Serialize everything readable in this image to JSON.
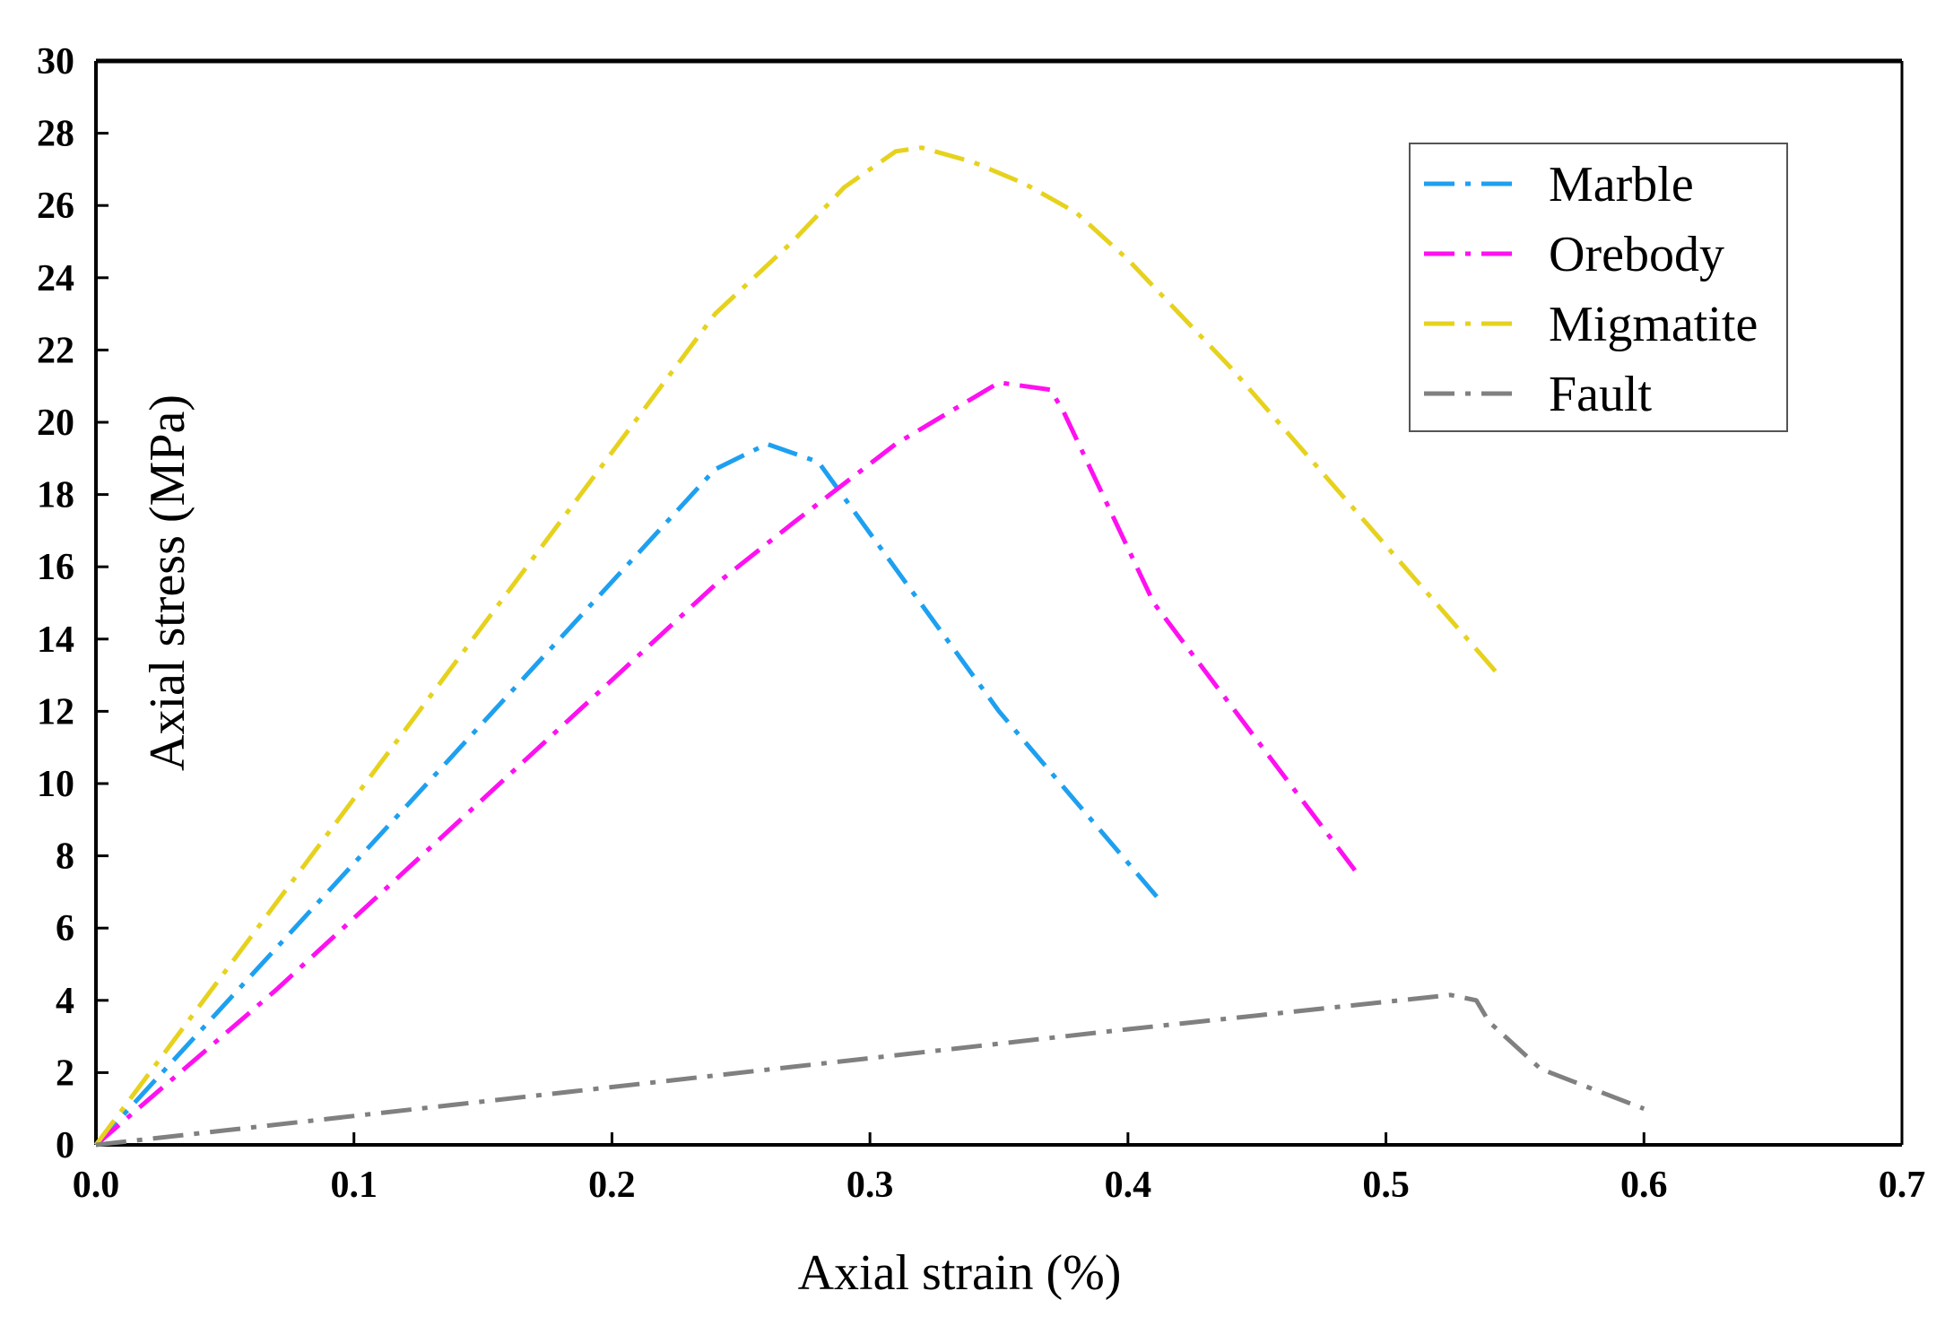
{
  "chart_data": {
    "type": "line",
    "title": "",
    "xlabel": "Axial strain (%)",
    "ylabel": "Axial stress (MPa)",
    "xlim": [
      0.0,
      0.7
    ],
    "ylim": [
      0,
      30
    ],
    "xticks": [
      0.0,
      0.1,
      0.2,
      0.3,
      0.4,
      0.5,
      0.6,
      0.7
    ],
    "xtick_labels": [
      "0.0",
      "0.1",
      "0.2",
      "0.3",
      "0.4",
      "0.5",
      "0.6",
      "0.7"
    ],
    "yticks": [
      0,
      2,
      4,
      6,
      8,
      10,
      12,
      14,
      16,
      18,
      20,
      22,
      24,
      26,
      28,
      30
    ],
    "ytick_labels": [
      "0",
      "2",
      "4",
      "6",
      "8",
      "10",
      "12",
      "14",
      "16",
      "18",
      "20",
      "22",
      "24",
      "26",
      "28",
      "30"
    ],
    "grid": false,
    "legend_position": "top-right",
    "series": [
      {
        "name": "Marble",
        "color": "#1EA0F0",
        "x": [
          0.0,
          0.24,
          0.26,
          0.28,
          0.35,
          0.412
        ],
        "y": [
          0.0,
          18.7,
          19.4,
          18.9,
          12.0,
          6.8
        ]
      },
      {
        "name": "Orebody",
        "color": "#FF10F0",
        "x": [
          0.0,
          0.07,
          0.24,
          0.27,
          0.31,
          0.35,
          0.37,
          0.375,
          0.41,
          0.488
        ],
        "y": [
          0.0,
          4.3,
          15.5,
          17.2,
          19.4,
          21.1,
          20.9,
          20.3,
          15.0,
          7.6
        ]
      },
      {
        "name": "Migmatite",
        "color": "#E6D21E",
        "x": [
          0.0,
          0.24,
          0.27,
          0.29,
          0.31,
          0.32,
          0.34,
          0.36,
          0.38,
          0.4,
          0.44,
          0.545
        ],
        "y": [
          0.0,
          23.0,
          25.0,
          26.5,
          27.5,
          27.6,
          27.2,
          26.6,
          25.8,
          24.5,
          21.5,
          12.9
        ]
      },
      {
        "name": "Fault",
        "color": "#808080",
        "x": [
          0.0,
          0.2,
          0.3,
          0.4,
          0.525,
          0.535,
          0.54,
          0.56,
          0.6
        ],
        "y": [
          0.0,
          1.6,
          2.4,
          3.2,
          4.15,
          4.0,
          3.4,
          2.1,
          1.0
        ]
      }
    ]
  }
}
